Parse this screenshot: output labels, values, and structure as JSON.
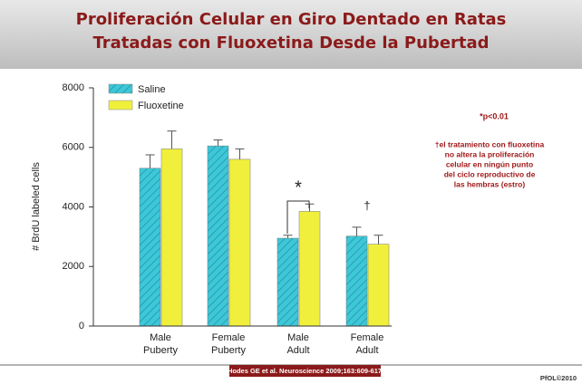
{
  "chart_data": {
    "type": "bar",
    "title": [
      "Proliferación Celular en Giro Dentado en Ratas",
      "Tratadas con Fluoxetina Desde la Pubertad"
    ],
    "y_label": "# BrdU labeled cells",
    "categories": [
      [
        "Male",
        "Puberty"
      ],
      [
        "Female",
        "Puberty"
      ],
      [
        "Male",
        "Adult"
      ],
      [
        "Female",
        "Adult"
      ]
    ],
    "series": [
      {
        "name": "Saline",
        "color": "#3cc8d8",
        "values": [
          5300,
          6050,
          2950,
          3020
        ],
        "errors": [
          450,
          200,
          100,
          300
        ]
      },
      {
        "name": "Fluoxetine",
        "color": "#f0f03c",
        "values": [
          5950,
          5600,
          3850,
          2750
        ],
        "errors": [
          600,
          350,
          250,
          300
        ]
      }
    ],
    "ylim": [
      0,
      8000
    ],
    "yticks": [
      0,
      2000,
      4000,
      6000,
      8000
    ],
    "markers": [
      "*",
      "†"
    ],
    "significance": "*p<0.01",
    "note": [
      "†el tratamiento con fluoxetina",
      "no altera la proliferación",
      "celular en ningún punto",
      "del ciclo reproductivo de",
      "las hembras (estro)"
    ],
    "citation": "Hodes GE et al. Neuroscience 2009;163:609-617",
    "credit": "PfOL©2010"
  }
}
